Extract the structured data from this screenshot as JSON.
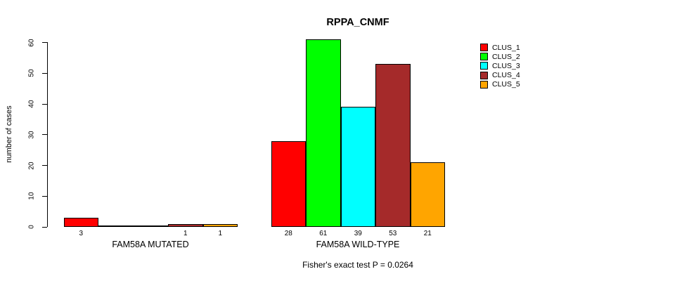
{
  "title": "RPPA_CNMF",
  "chart_data": {
    "type": "bar",
    "title": "RPPA_CNMF",
    "ylabel": "number of cases",
    "xlabel": "",
    "ylim": [
      0,
      60
    ],
    "yticks": [
      0,
      10,
      20,
      30,
      40,
      50,
      60
    ],
    "grid": false,
    "legend_position": "top-right-inside",
    "categories": [
      "FAM58A MUTATED",
      "FAM58A WILD-TYPE"
    ],
    "series": [
      {
        "name": "CLUS_1",
        "color": "#FF0000",
        "values": [
          3,
          28
        ]
      },
      {
        "name": "CLUS_2",
        "color": "#00FF00",
        "values": [
          0,
          61
        ]
      },
      {
        "name": "CLUS_3",
        "color": "#00FFFF",
        "values": [
          0,
          39
        ]
      },
      {
        "name": "CLUS_4",
        "color": "#A52A2A",
        "values": [
          1,
          53
        ]
      },
      {
        "name": "CLUS_5",
        "color": "#FFA500",
        "values": [
          1,
          21
        ]
      }
    ],
    "bar_value_labels": {
      "shown": true,
      "hidden_for_zero": true
    },
    "annotation": "Fisher's exact test P = 0.0264"
  }
}
